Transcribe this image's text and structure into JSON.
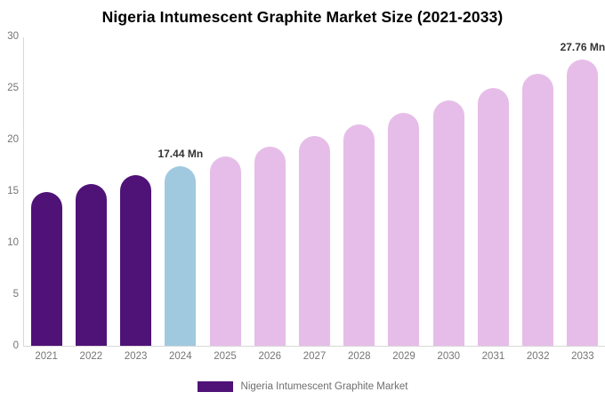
{
  "chart_data": {
    "type": "bar",
    "title": "Nigeria Intumescent Graphite Market Size (2021-2033)",
    "categories": [
      "2021",
      "2022",
      "2023",
      "2024",
      "2025",
      "2026",
      "2027",
      "2028",
      "2029",
      "2030",
      "2031",
      "2032",
      "2033"
    ],
    "values": [
      14.94,
      15.73,
      16.56,
      17.44,
      18.36,
      19.34,
      20.36,
      21.44,
      22.57,
      23.77,
      25.03,
      26.36,
      27.76
    ],
    "unit": "Mn",
    "bar_colors": [
      "#4F1277",
      "#4F1277",
      "#4F1277",
      "#A0C9E0",
      "#E6BDE8",
      "#E6BDE8",
      "#E6BDE8",
      "#E6BDE8",
      "#E6BDE8",
      "#E6BDE8",
      "#E6BDE8",
      "#E6BDE8",
      "#E6BDE8"
    ],
    "annotations": [
      {
        "category": "2024",
        "label": "17.44 Mn"
      },
      {
        "category": "2033",
        "label": "27.76 Mn"
      }
    ],
    "xlabel": "",
    "ylabel": "",
    "ylim": [
      0,
      30
    ],
    "yticks": [
      0,
      5,
      10,
      15,
      20,
      25,
      30
    ],
    "grid": false,
    "legend_position": "bottom"
  },
  "colors": {
    "historical_bar": "#4F1277",
    "base_year_bar": "#A0C9E0",
    "forecast_bar": "#E6BDE8",
    "axis_line": "#D8D8D8",
    "tick_label": "#757575",
    "annotation_text": "#333333",
    "title_text": "#000000",
    "background": "#FFFFFF"
  },
  "legend": {
    "label": "Nigeria Intumescent Graphite Market",
    "swatch_color": "#4F1277"
  }
}
